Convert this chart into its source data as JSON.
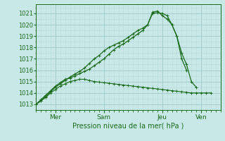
{
  "xlabel": "Pression niveau de la mer( hPa )",
  "ylim": [
    1012.5,
    1021.8
  ],
  "xlim": [
    0,
    9.5
  ],
  "yticks": [
    1013,
    1014,
    1015,
    1016,
    1017,
    1018,
    1019,
    1020,
    1021
  ],
  "xtick_positions": [
    1.0,
    3.5,
    6.5,
    8.5
  ],
  "xtick_labels": [
    "Mer",
    "Sam",
    "Jeu",
    "Ven"
  ],
  "xtick_minor_spacing": 0.25,
  "ytick_minor_spacing": 0.5,
  "bg_color": "#c8e8e8",
  "grid_major_color": "#a0c8c8",
  "grid_minor_color": "#b8d8d8",
  "line_color": "#1a6b1a",
  "line1_x": [
    0.0,
    0.25,
    0.5,
    0.75,
    1.0,
    1.25,
    1.5,
    1.75,
    2.0,
    2.25,
    2.5,
    2.75,
    3.0,
    3.25,
    3.5,
    3.75,
    4.0,
    4.25,
    4.5,
    4.75,
    5.0,
    5.25,
    5.5,
    5.75,
    6.0,
    6.25,
    6.5,
    6.75,
    7.0,
    7.25,
    7.5,
    7.75,
    8.0,
    8.25,
    8.5,
    8.75,
    9.0
  ],
  "line1_y": [
    1013.0,
    1013.3,
    1013.6,
    1014.0,
    1014.3,
    1014.6,
    1014.8,
    1015.0,
    1015.1,
    1015.2,
    1015.2,
    1015.1,
    1015.0,
    1014.95,
    1014.9,
    1014.85,
    1014.8,
    1014.75,
    1014.7,
    1014.65,
    1014.6,
    1014.55,
    1014.5,
    1014.45,
    1014.4,
    1014.35,
    1014.3,
    1014.25,
    1014.2,
    1014.15,
    1014.1,
    1014.05,
    1014.0,
    1014.0,
    1014.0,
    1014.0,
    1014.0
  ],
  "line2_x": [
    0.0,
    0.25,
    0.5,
    0.75,
    1.0,
    1.25,
    1.5,
    1.75,
    2.0,
    2.25,
    2.5,
    2.75,
    3.0,
    3.25,
    3.5,
    3.75,
    4.0,
    4.25,
    4.5,
    4.75,
    5.0,
    5.25,
    5.5,
    5.75,
    6.0,
    6.25,
    6.5,
    6.75,
    7.0,
    7.25,
    7.5,
    7.75
  ],
  "line2_y": [
    1013.0,
    1013.4,
    1013.8,
    1014.2,
    1014.6,
    1014.9,
    1015.2,
    1015.3,
    1015.5,
    1015.7,
    1015.9,
    1016.1,
    1016.4,
    1016.7,
    1017.0,
    1017.4,
    1017.8,
    1018.1,
    1018.3,
    1018.6,
    1018.9,
    1019.2,
    1019.5,
    1020.0,
    1021.0,
    1021.05,
    1021.0,
    1020.8,
    1020.0,
    1019.0,
    1017.0,
    1016.0
  ],
  "line3_x": [
    0.0,
    0.25,
    0.5,
    0.75,
    1.0,
    1.25,
    1.5,
    1.75,
    2.0,
    2.25,
    2.5,
    2.75,
    3.0,
    3.25,
    3.5,
    3.75,
    4.0,
    4.25,
    4.5,
    4.75,
    5.0,
    5.25,
    5.5,
    5.75,
    6.0,
    6.25,
    6.5,
    6.75,
    7.0,
    7.25,
    7.5,
    7.75,
    8.0,
    8.25
  ],
  "line3_y": [
    1013.0,
    1013.3,
    1013.7,
    1014.1,
    1014.5,
    1014.8,
    1015.1,
    1015.4,
    1015.65,
    1015.9,
    1016.2,
    1016.6,
    1017.0,
    1017.3,
    1017.7,
    1018.0,
    1018.2,
    1018.4,
    1018.6,
    1018.9,
    1019.2,
    1019.5,
    1019.7,
    1020.0,
    1021.1,
    1021.2,
    1020.8,
    1020.5,
    1020.0,
    1019.0,
    1017.5,
    1016.5,
    1015.0,
    1014.5
  ]
}
